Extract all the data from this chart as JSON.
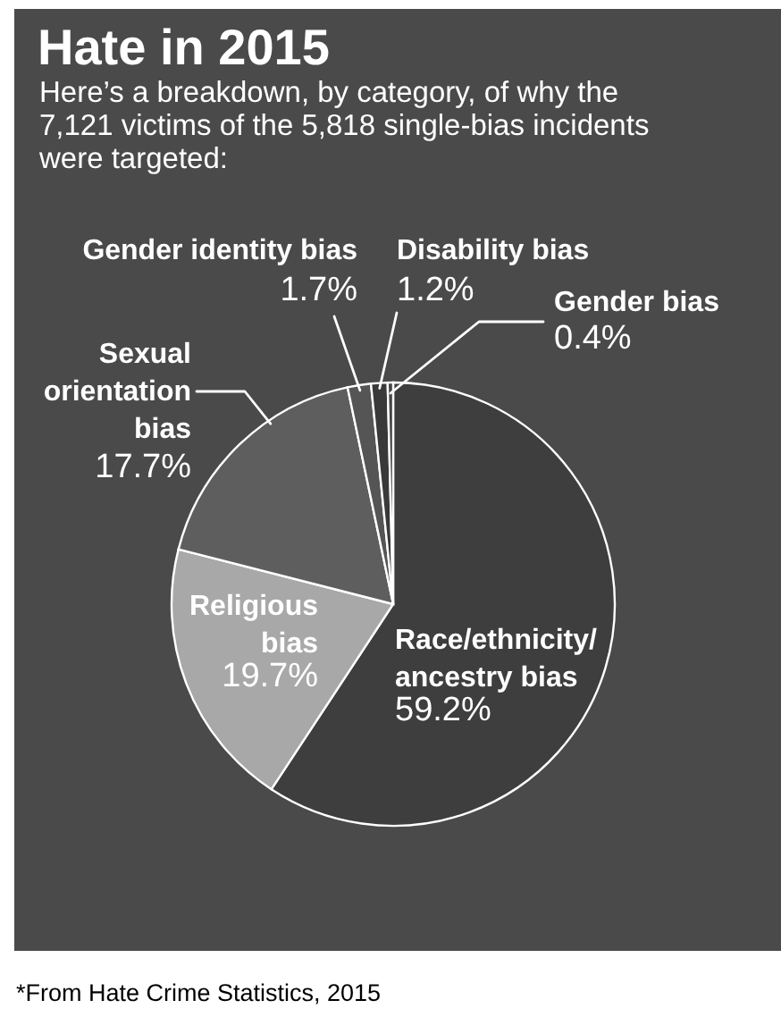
{
  "chart_data": {
    "type": "pie",
    "title": "Hate in 2015",
    "subtitle": "Here’s a breakdown, by category, of why the 7,121 victims of the 5,818 single-bias incidents were targeted:",
    "categories": [
      "Race/ethnicity/ancestry bias",
      "Religious bias",
      "Sexual orientation bias",
      "Gender identity bias",
      "Disability bias",
      "Gender bias"
    ],
    "values": [
      59.2,
      19.7,
      17.7,
      1.7,
      1.2,
      0.4
    ],
    "colors": [
      "#3e3e3e",
      "#a8a8a8",
      "#5e5e5e",
      "#555555",
      "#393939",
      "#454545"
    ],
    "value_labels": [
      "59.2%",
      "19.7%",
      "17.7%",
      "1.7%",
      "1.2%",
      "0.4%"
    ],
    "annotations": [
      "*From Hate Crime Statistics, 2015"
    ]
  }
}
